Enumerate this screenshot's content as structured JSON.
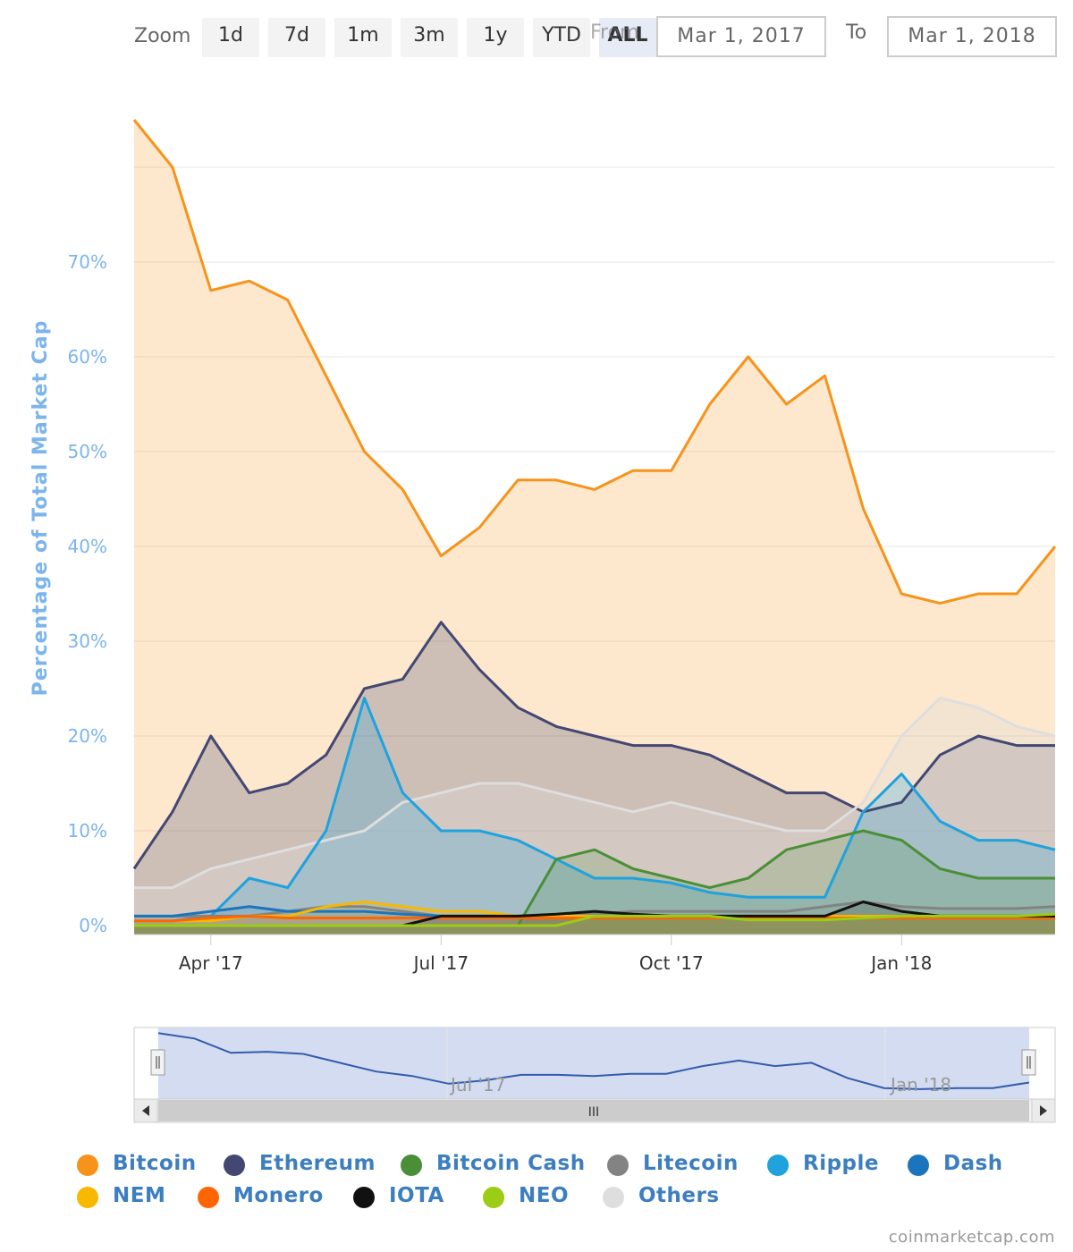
{
  "zoom": {
    "label": "Zoom",
    "buttons": [
      "1d",
      "7d",
      "1m",
      "3m",
      "1y",
      "YTD",
      "ALL"
    ],
    "active": "ALL"
  },
  "range": {
    "from_label": "From",
    "from_value": "Mar 1, 2017",
    "to_label": "To",
    "to_value": "Mar 1, 2018"
  },
  "credit": "coinmarketcap.com",
  "navigator": {
    "ticks": [
      "Jul '17",
      "Jan '18"
    ],
    "scroll_grip": "III"
  },
  "colors": {
    "Bitcoin": "#f7931a",
    "Ethereum": "#434873",
    "Bitcoin Cash": "#4a8f37",
    "Litecoin": "#838383",
    "Ripple": "#1fa2de",
    "Dash": "#1c75bc",
    "NEM": "#f7b900",
    "Monero": "#ff6600",
    "IOTA": "#111111",
    "NEO": "#9acd13",
    "Others": "#dedede"
  },
  "chart_data": {
    "type": "area",
    "title": "",
    "xlabel": "",
    "ylabel": "Percentage of Total Market Cap",
    "ylim": [
      0,
      85
    ],
    "y_ticks": [
      "0%",
      "10%",
      "20%",
      "30%",
      "40%",
      "50%",
      "60%",
      "70%"
    ],
    "x_ticks": [
      "Apr '17",
      "Jul '17",
      "Oct '17",
      "Jan '18"
    ],
    "x_range": [
      "Mar 1, 2017",
      "Mar 1, 2018"
    ],
    "grid": true,
    "legend": "bottom",
    "x_months": [
      0,
      0.5,
      1,
      1.5,
      2,
      2.5,
      3,
      3.5,
      4,
      4.5,
      5,
      5.5,
      6,
      6.5,
      7,
      7.5,
      8,
      8.5,
      9,
      9.5,
      10,
      10.5,
      11,
      11.5,
      12
    ],
    "series": [
      {
        "name": "Bitcoin",
        "values": [
          85,
          80,
          67,
          68,
          66,
          58,
          50,
          46,
          39,
          42,
          47,
          47,
          46,
          48,
          48,
          55,
          60,
          55,
          58,
          44,
          35,
          34,
          35,
          35,
          40
        ]
      },
      {
        "name": "Ethereum",
        "values": [
          6,
          12,
          20,
          14,
          15,
          18,
          25,
          26,
          32,
          27,
          23,
          21,
          20,
          19,
          19,
          18,
          16,
          14,
          14,
          12,
          13,
          18,
          20,
          19,
          19
        ]
      },
      {
        "name": "Bitcoin Cash",
        "values": [
          0,
          0,
          0,
          0,
          0,
          0,
          0,
          0,
          0,
          0,
          0,
          7,
          8,
          6,
          5,
          4,
          5,
          8,
          9,
          10,
          9,
          6,
          5,
          5,
          5
        ]
      },
      {
        "name": "Litecoin",
        "values": [
          1,
          1,
          1,
          1,
          1.5,
          2,
          2,
          1.5,
          1,
          1,
          1,
          1,
          1.2,
          1.5,
          1.5,
          1.5,
          1.5,
          1.5,
          2,
          2.5,
          2,
          1.8,
          1.8,
          1.8,
          2
        ]
      },
      {
        "name": "Ripple",
        "values": [
          0.5,
          0.5,
          1,
          5,
          4,
          10,
          24,
          14,
          10,
          10,
          9,
          7,
          5,
          5,
          4.5,
          3.5,
          3,
          3,
          3,
          12,
          16,
          11,
          9,
          9,
          8
        ]
      },
      {
        "name": "Dash",
        "values": [
          1,
          1,
          1.5,
          2,
          1.5,
          1.5,
          1.5,
          1.2,
          1,
          1,
          1,
          1,
          1,
          1,
          1,
          1,
          1,
          1,
          1,
          1,
          1,
          1,
          1,
          1,
          1
        ]
      },
      {
        "name": "NEM",
        "values": [
          0.5,
          0.5,
          0.5,
          1,
          1,
          2,
          2.5,
          2,
          1.5,
          1.5,
          1,
          1,
          1,
          1,
          1,
          1,
          1,
          1,
          1,
          1,
          1,
          1,
          1,
          1,
          1
        ]
      },
      {
        "name": "Monero",
        "values": [
          0.5,
          0.5,
          0.8,
          1,
          0.8,
          0.8,
          0.8,
          0.8,
          0.8,
          0.8,
          0.8,
          0.8,
          0.8,
          0.8,
          0.8,
          0.8,
          0.8,
          0.8,
          0.8,
          0.8,
          0.8,
          0.8,
          0.8,
          0.8,
          0.8
        ]
      },
      {
        "name": "IOTA",
        "values": [
          0,
          0,
          0,
          0,
          0,
          0,
          0,
          0,
          1,
          1,
          1,
          1.2,
          1.5,
          1.2,
          1,
          1,
          1,
          1,
          1,
          2.5,
          1.5,
          1,
          1,
          1,
          1
        ]
      },
      {
        "name": "NEO",
        "values": [
          0,
          0,
          0,
          0,
          0,
          0,
          0,
          0,
          0,
          0,
          0,
          0,
          1,
          1,
          1,
          1,
          0.6,
          0.6,
          0.6,
          0.8,
          1,
          1,
          1,
          1,
          1.2
        ]
      },
      {
        "name": "Others",
        "values": [
          4,
          4,
          6,
          7,
          8,
          9,
          10,
          13,
          14,
          15,
          15,
          14,
          13,
          12,
          13,
          12,
          11,
          10,
          10,
          13,
          20,
          24,
          23,
          21,
          20
        ]
      }
    ]
  }
}
